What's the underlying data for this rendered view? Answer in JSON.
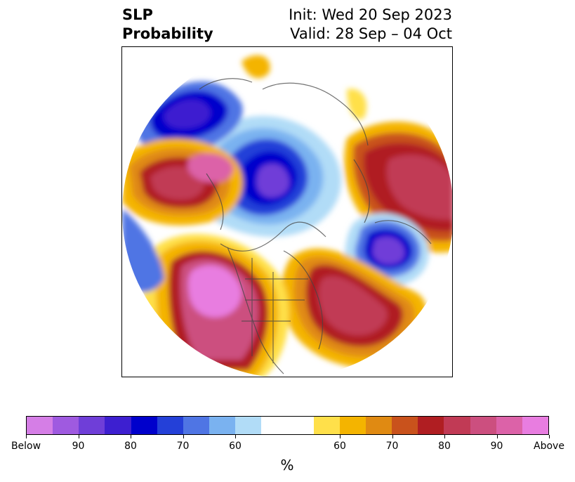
{
  "title": {
    "left_line1": "SLP",
    "left_line2": "Probability",
    "init": "Init: Wed 20 Sep 2023",
    "valid": "Valid: 28 Sep – 04 Oct"
  },
  "colorbar": {
    "colors": [
      "#d57ee6",
      "#9f5ae0",
      "#6f3ed8",
      "#3d1fd0",
      "#0000cc",
      "#2440d8",
      "#4f75e4",
      "#7ab2f0",
      "#b1dcf7",
      "#ffffff",
      "#ffe04a",
      "#f4b400",
      "#e08a12",
      "#c9521c",
      "#b01e22",
      "#c13a55",
      "#cc4f7f",
      "#dc62a8",
      "#e87de0"
    ],
    "tick_labels": [
      "Below",
      "90",
      "80",
      "70",
      "60",
      "60",
      "70",
      "80",
      "90",
      "Above"
    ],
    "unit": "%"
  },
  "map": {
    "projection": "polar stereographic, North Pole centered",
    "field": "SLP probability",
    "below_color": "#0000cc",
    "above_color": "#b01e22"
  }
}
